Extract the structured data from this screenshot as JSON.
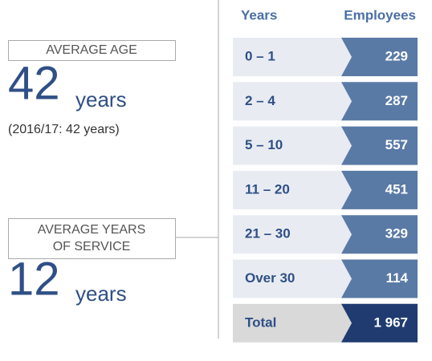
{
  "left": {
    "average_age": {
      "label": "AVERAGE AGE",
      "value": "42",
      "unit": "years",
      "note": "(2016/17: 42 years)"
    },
    "average_service": {
      "label_lines": [
        "AVERAGE YEARS",
        "OF SERVICE"
      ],
      "value": "12",
      "unit": "years"
    }
  },
  "table": {
    "headers": [
      "Years",
      "Employees"
    ],
    "rows": [
      [
        "0 – 1",
        "229"
      ],
      [
        "2 – 4",
        "287"
      ],
      [
        "5 – 10",
        "557"
      ],
      [
        "11 – 20",
        "451"
      ],
      [
        "21 – 30",
        "329"
      ],
      [
        "Over 30",
        "114"
      ]
    ],
    "total": [
      "Total",
      "1 967"
    ]
  }
}
